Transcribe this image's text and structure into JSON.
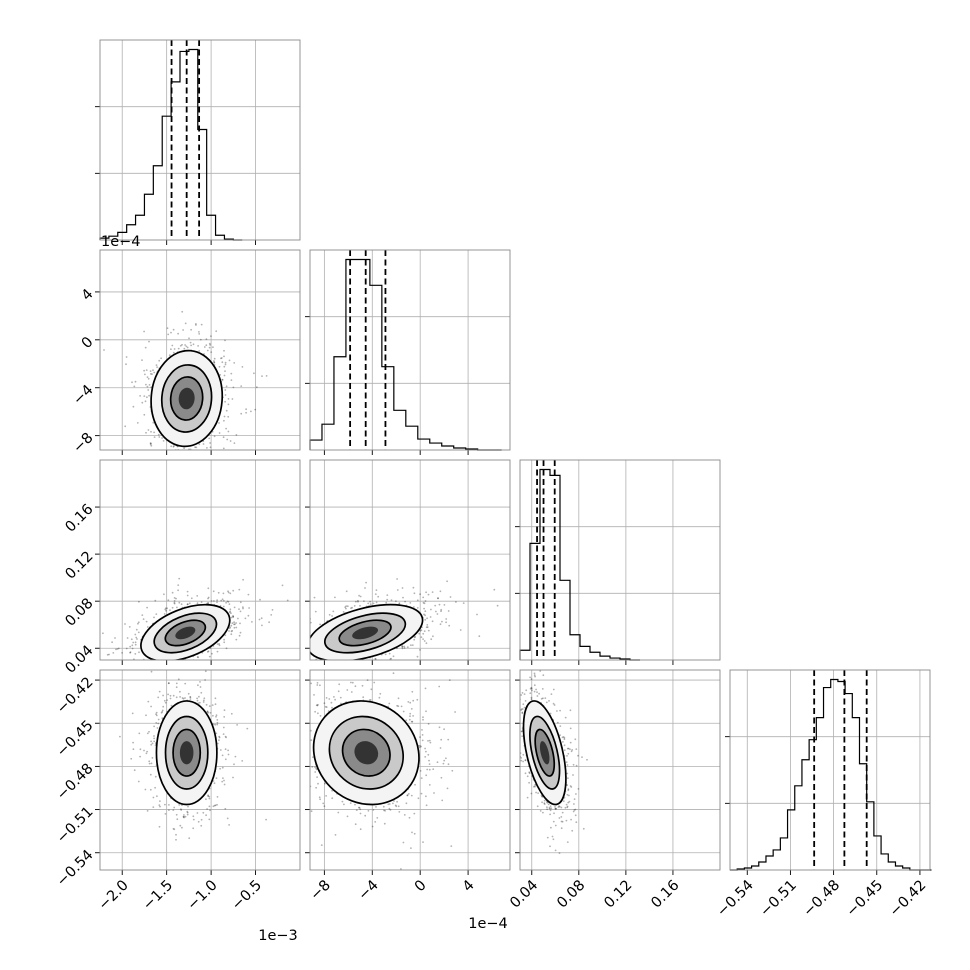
{
  "chart_data": {
    "type": "corner",
    "title": "",
    "grid": true,
    "params": [
      {
        "name": "",
        "range": [
          -2.25,
          -0.0
        ],
        "offset_text": "1e−3",
        "ticks": [
          -2.0,
          -1.5,
          -1.0,
          -0.5
        ],
        "tick_labels": [
          "−2.0",
          "−1.5",
          "−1.0",
          "−0.5"
        ],
        "hist_x": [
          -2.25,
          -2.15,
          -2.05,
          -1.95,
          -1.85,
          -1.75,
          -1.65,
          -1.55,
          -1.45,
          -1.35,
          -1.25,
          -1.15,
          -1.05,
          -0.95,
          -0.85,
          -0.75
        ],
        "hist_y": [
          0.01,
          0.02,
          0.04,
          0.08,
          0.13,
          0.24,
          0.39,
          0.65,
          0.83,
          0.99,
          1.0,
          0.58,
          0.13,
          0.025,
          0.005,
          0
        ],
        "quantiles": [
          -1.445,
          -1.275,
          -1.135
        ]
      },
      {
        "name": "",
        "range": [
          -9.2,
          7.5
        ],
        "offset_text": "1e−4",
        "ticks": [
          -8,
          -4,
          0,
          4
        ],
        "tick_labels": [
          "−8",
          "−4",
          "0",
          "4"
        ],
        "hist_x": [
          -9.2,
          -8.2,
          -7.2,
          -6.2,
          -5.2,
          -4.2,
          -3.2,
          -2.2,
          -1.2,
          -0.2,
          0.8,
          1.8,
          2.8,
          3.8,
          4.8,
          5.8
        ],
        "hist_y": [
          0.05,
          0.13,
          0.47,
          0.96,
          0.96,
          0.83,
          0.42,
          0.2,
          0.12,
          0.055,
          0.035,
          0.02,
          0.01,
          0.005,
          0,
          0
        ],
        "quantiles": [
          -5.85,
          -4.55,
          -2.9
        ]
      },
      {
        "name": "",
        "range": [
          0.03,
          0.2
        ],
        "offset_text": "",
        "ticks": [
          0.04,
          0.08,
          0.12,
          0.16
        ],
        "tick_labels": [
          "0.04",
          "0.08",
          "0.12",
          "0.16"
        ],
        "hist_x": [
          0.03,
          0.0385,
          0.047,
          0.0555,
          0.064,
          0.0725,
          0.081,
          0.0895,
          0.098,
          0.1065,
          0.115,
          0.1235
        ],
        "hist_y": [
          0.05,
          0.6,
          0.98,
          0.95,
          0.41,
          0.13,
          0.07,
          0.04,
          0.02,
          0.01,
          0.005,
          0
        ],
        "quantiles": [
          0.0445,
          0.05,
          0.0595
        ]
      },
      {
        "name": "",
        "range": [
          -0.552,
          -0.413
        ],
        "offset_text": "",
        "ticks": [
          -0.54,
          -0.51,
          -0.48,
          -0.45,
          -0.42
        ],
        "tick_labels": [
          "−0.54",
          "−0.51",
          "−0.48",
          "−0.45",
          "−0.42"
        ],
        "hist_x": [
          -0.552,
          -0.547,
          -0.542,
          -0.537,
          -0.532,
          -0.527,
          -0.522,
          -0.517,
          -0.512,
          -0.507,
          -0.502,
          -0.497,
          -0.492,
          -0.487,
          -0.482,
          -0.477,
          -0.472,
          -0.467,
          -0.462,
          -0.457,
          -0.452,
          -0.447,
          -0.442,
          -0.437,
          -0.432,
          -0.427,
          -0.422,
          -0.417
        ],
        "hist_y": [
          0,
          0.005,
          0.01,
          0.02,
          0.04,
          0.07,
          0.1,
          0.16,
          0.3,
          0.42,
          0.55,
          0.65,
          0.76,
          0.91,
          0.95,
          0.94,
          0.88,
          0.76,
          0.53,
          0.34,
          0.17,
          0.08,
          0.04,
          0.02,
          0.01,
          0,
          0,
          0
        ],
        "quantiles": [
          -0.4935,
          -0.4725,
          -0.457
        ]
      }
    ],
    "pairs": [
      {
        "x": 0,
        "y": 1,
        "center": [
          -1.275,
          -4.9
        ],
        "sd": [
          0.2,
          2.0
        ],
        "rho": 0.05
      },
      {
        "x": 0,
        "y": 2,
        "center": [
          -1.29,
          0.053
        ],
        "sd": [
          0.25,
          0.012
        ],
        "rho": 0.45
      },
      {
        "x": 1,
        "y": 2,
        "center": [
          -4.6,
          0.053
        ],
        "sd": [
          2.4,
          0.012
        ],
        "rho": 0.45
      },
      {
        "x": 0,
        "y": 3,
        "center": [
          -1.275,
          -0.4705
        ],
        "sd": [
          0.17,
          0.018
        ],
        "rho": 0.0
      },
      {
        "x": 1,
        "y": 3,
        "center": [
          -4.5,
          -0.4705
        ],
        "sd": [
          2.2,
          0.018
        ],
        "rho": -0.1
      },
      {
        "x": 2,
        "y": 3,
        "center": [
          0.051,
          -0.4705
        ],
        "sd": [
          0.009,
          0.018
        ],
        "rho": -0.5
      }
    ]
  }
}
